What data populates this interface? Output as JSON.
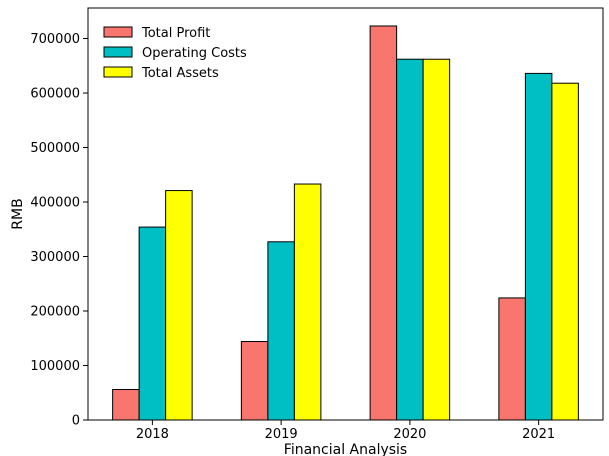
{
  "chart_data": {
    "type": "bar",
    "categories": [
      "2018",
      "2019",
      "2020",
      "2021"
    ],
    "series": [
      {
        "name": "Total Profit",
        "color": "#f8766d",
        "values": [
          56000,
          144000,
          723000,
          224000
        ]
      },
      {
        "name": "Operating Costs",
        "color": "#00bfc4",
        "values": [
          354000,
          327000,
          662000,
          636000
        ]
      },
      {
        "name": "Total Assets",
        "color": "#ffff00",
        "values": [
          421000,
          433000,
          662000,
          618000
        ]
      }
    ],
    "xlabel": "Financial Analysis",
    "ylabel": "RMB",
    "ylim": [
      0,
      756000
    ],
    "yticks": [
      0,
      100000,
      200000,
      300000,
      400000,
      500000,
      600000,
      700000
    ],
    "legend": "top-left",
    "grid": false
  }
}
